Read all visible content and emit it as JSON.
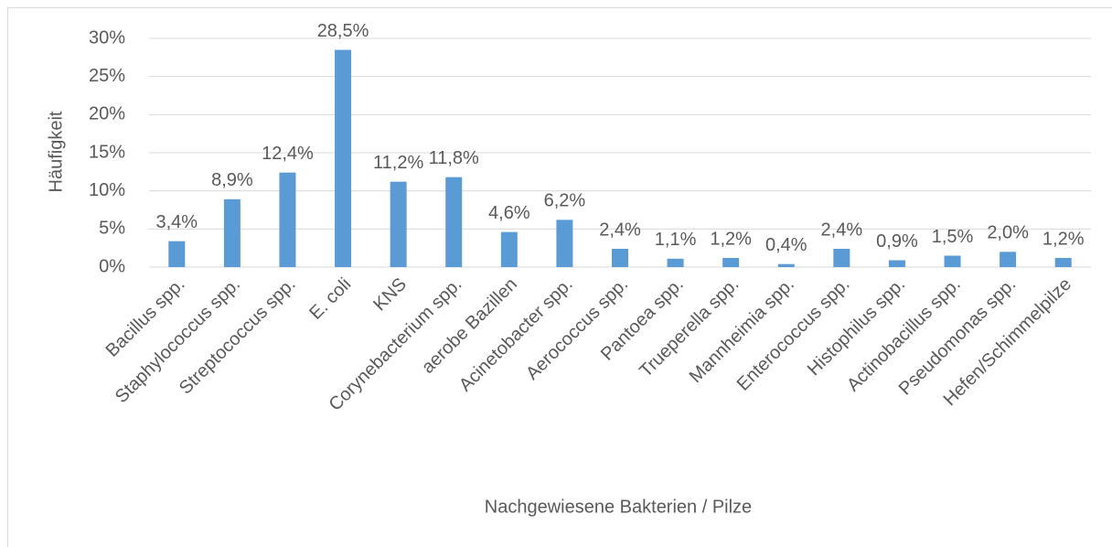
{
  "chart_data": {
    "type": "bar",
    "x_label": "Nachgewiesene Bakterien / Pilze",
    "y_label": "Häufigkeit",
    "categories": [
      "Bacillus spp.",
      "Staphylococcus spp.",
      "Streptococcus spp.",
      "E. coli",
      "KNS",
      "Corynebacterium spp.",
      "aerobe Bazillen",
      "Acinetobacter spp.",
      "Aerococcus spp.",
      "Pantoea spp.",
      "Trueperella spp.",
      "Mannheimia spp.",
      "Enterococcus spp.",
      "Histophilus spp.",
      "Actinobacillus spp.",
      "Pseudomonas spp.",
      "Hefen/Schimmelpilze"
    ],
    "values": [
      3.4,
      8.9,
      12.4,
      28.5,
      11.2,
      11.8,
      4.6,
      6.2,
      2.4,
      1.1,
      1.2,
      0.4,
      2.4,
      0.9,
      1.5,
      2.0,
      1.2
    ],
    "value_labels": [
      "3,4%",
      "8,9%",
      "12,4%",
      "28,5%",
      "11,2%",
      "11,8%",
      "4,6%",
      "6,2%",
      "2,4%",
      "1,1%",
      "1,2%",
      "0,4%",
      "2,4%",
      "0,9%",
      "1,5%",
      "2,0%",
      "1,2%"
    ],
    "color": "#5b9bd5",
    "ylim": [
      0,
      30
    ],
    "yticks": [
      {
        "value": 0,
        "label": "0%"
      },
      {
        "value": 5,
        "label": "5%"
      },
      {
        "value": 10,
        "label": "10%"
      },
      {
        "value": 15,
        "label": "15%"
      },
      {
        "value": 20,
        "label": "20%"
      },
      {
        "value": 25,
        "label": "25%"
      },
      {
        "value": 30,
        "label": "30%"
      }
    ],
    "grid": true
  }
}
